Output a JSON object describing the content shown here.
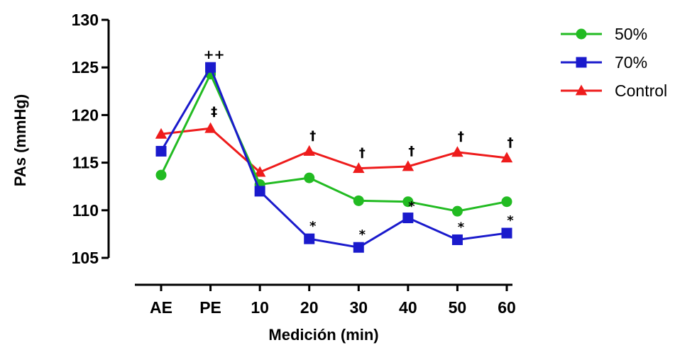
{
  "chart_data": {
    "type": "line",
    "xlabel": "Medición (min)",
    "ylabel": "PAs (mmHg)",
    "categories": [
      "AE",
      "PE",
      "10",
      "20",
      "30",
      "40",
      "50",
      "60"
    ],
    "ylim": [
      105,
      130
    ],
    "yticks": [
      105,
      110,
      115,
      120,
      125,
      130
    ],
    "grid": false,
    "legend_position": "top-right",
    "series": [
      {
        "name": "50%",
        "color": "#22bb22",
        "marker": "circle",
        "values": [
          113.7,
          124.3,
          112.7,
          113.4,
          111.0,
          110.9,
          109.9,
          110.9
        ]
      },
      {
        "name": "70%",
        "color": "#1a1acc",
        "marker": "square",
        "values": [
          116.2,
          125.0,
          112.0,
          107.0,
          106.1,
          109.2,
          106.9,
          107.6
        ]
      },
      {
        "name": "Control",
        "color": "#ee1c1c",
        "marker": "triangle",
        "values": [
          118.0,
          118.6,
          114.0,
          116.2,
          114.4,
          114.6,
          116.1,
          115.5
        ]
      }
    ],
    "annotations": [
      {
        "text": "++",
        "category": "PE",
        "y": 125.9
      },
      {
        "text": "‡",
        "category": "PE",
        "y": 119.9
      },
      {
        "text": "†",
        "category": "20",
        "y": 117.4
      },
      {
        "text": "†",
        "category": "30",
        "y": 115.6
      },
      {
        "text": "†",
        "category": "40",
        "y": 115.8
      },
      {
        "text": "†",
        "category": "50",
        "y": 117.3
      },
      {
        "text": "†",
        "category": "60",
        "y": 116.7
      },
      {
        "text": "*",
        "category": "20",
        "y": 107.9
      },
      {
        "text": "*",
        "category": "30",
        "y": 107.0
      },
      {
        "text": "*",
        "category": "40",
        "y": 110.0
      },
      {
        "text": "*",
        "category": "50",
        "y": 107.8
      },
      {
        "text": "*",
        "category": "60",
        "y": 108.5
      }
    ]
  }
}
